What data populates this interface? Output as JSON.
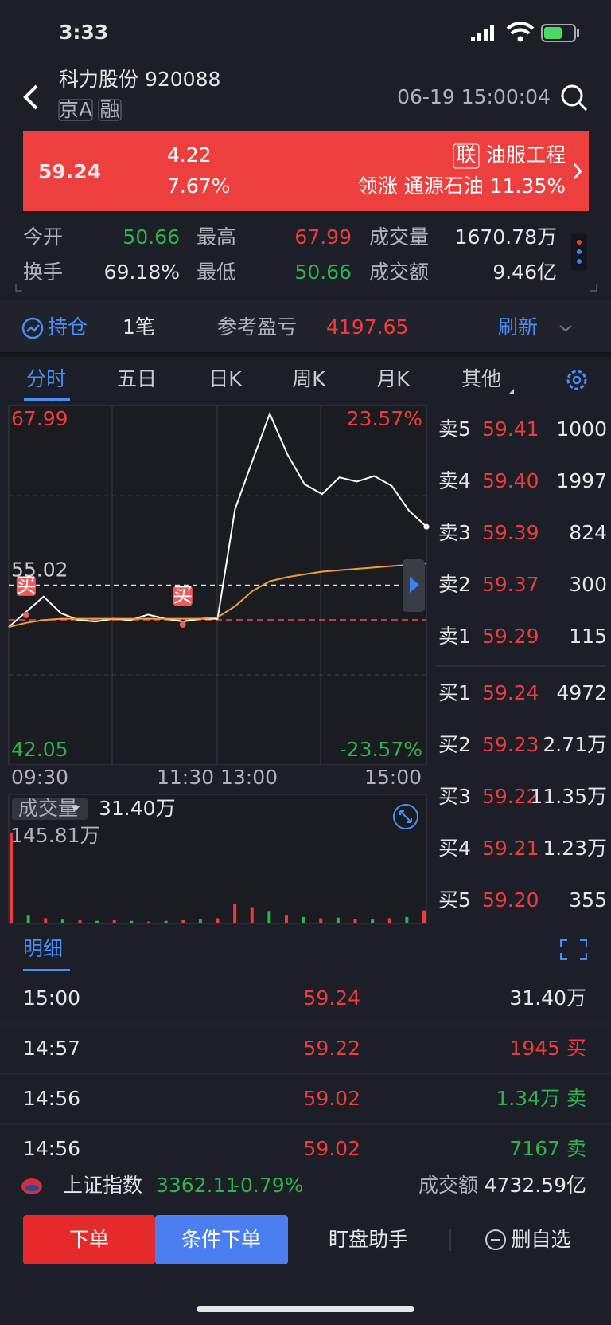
{
  "status_bar": {
    "time": "3:33"
  },
  "header": {
    "title": "科力股份 920088",
    "tags": [
      "京A",
      "融"
    ],
    "datetime": "06-19 15:00:04"
  },
  "quote": {
    "price": "59.24",
    "change": "4.22",
    "change_pct": "7.67%",
    "sector_tag": "联",
    "sector": "油服工程",
    "leader": "领涨 通源石油 11.35%"
  },
  "stats": [
    {
      "label": "今开",
      "value": "50.66",
      "color": "#2fb24a"
    },
    {
      "label": "最高",
      "value": "67.99",
      "color": "#ef3b3b"
    },
    {
      "label": "成交量",
      "value": "1670.78万",
      "color": "#e6e6e6"
    },
    {
      "label": "换手",
      "value": "69.18%",
      "color": "#e6e6e6"
    },
    {
      "label": "最低",
      "value": "50.66",
      "color": "#2fb24a"
    },
    {
      "label": "成交额",
      "value": "9.46亿",
      "color": "#e6e6e6"
    }
  ],
  "position": {
    "label": "持仓",
    "count": "1笔",
    "pnl_label": "参考盈亏",
    "pnl": "4197.65",
    "refresh": "刷新"
  },
  "tabs": [
    "分时",
    "五日",
    "日K",
    "周K",
    "月K",
    "其他"
  ],
  "chart_data": {
    "type": "line",
    "ylim": [
      42.05,
      67.99
    ],
    "yticks": [
      67.99,
      55.02,
      42.05
    ],
    "pct_labels": [
      "23.57%",
      "-23.57%"
    ],
    "x_labels": [
      "09:30",
      "11:30 13:00",
      "15:00"
    ],
    "markers": [
      "买",
      "买"
    ],
    "series": [
      {
        "color": "#ffffff",
        "values": [
          52.0,
          53.1,
          54.2,
          53.0,
          52.5,
          52.4,
          52.6,
          52.5,
          52.9,
          52.6,
          52.4,
          52.6,
          52.6,
          60.5,
          64.0,
          67.4,
          64.5,
          62.3,
          61.6,
          62.8,
          62.5,
          62.9,
          62.2,
          60.4,
          59.24
        ]
      },
      {
        "color": "#f0a030",
        "values": [
          52.0,
          52.3,
          52.5,
          52.6,
          52.6,
          52.6,
          52.6,
          52.6,
          52.6,
          52.6,
          52.6,
          52.6,
          52.7,
          53.5,
          54.6,
          55.3,
          55.6,
          55.8,
          56.0,
          56.1,
          56.2,
          56.3,
          56.4,
          56.5,
          56.6
        ]
      }
    ]
  },
  "volume": {
    "type": "bar",
    "label": "成交量",
    "value": "31.40万",
    "max_label": "145.81万",
    "ylim": [
      0,
      145.81
    ],
    "values": [
      140,
      12,
      8,
      6,
      5,
      4,
      5,
      4,
      3,
      4,
      5,
      6,
      8,
      30,
      25,
      18,
      12,
      10,
      8,
      9,
      7,
      6,
      8,
      10,
      20
    ],
    "colors": [
      "#ef3b3b",
      "#2fb24a",
      "#ef3b3b",
      "#2fb24a",
      "#ef3b3b",
      "#2fb24a",
      "#ef3b3b",
      "#2fb24a",
      "#ef3b3b",
      "#2fb24a",
      "#ef3b3b",
      "#2fb24a",
      "#ef3b3b",
      "#ef3b3b",
      "#ef3b3b",
      "#2fb24a",
      "#ef3b3b",
      "#2fb24a",
      "#ef3b3b",
      "#2fb24a",
      "#ef3b3b",
      "#2fb24a",
      "#ef3b3b",
      "#2fb24a",
      "#ef3b3b"
    ]
  },
  "order_book": {
    "asks": [
      {
        "label": "卖5",
        "price": "59.41",
        "volume": "1000"
      },
      {
        "label": "卖4",
        "price": "59.40",
        "volume": "1997"
      },
      {
        "label": "卖3",
        "price": "59.39",
        "volume": "824"
      },
      {
        "label": "卖2",
        "price": "59.37",
        "volume": "300"
      },
      {
        "label": "卖1",
        "price": "59.29",
        "volume": "115"
      }
    ],
    "bids": [
      {
        "label": "买1",
        "price": "59.24",
        "volume": "4972"
      },
      {
        "label": "买2",
        "price": "59.23",
        "volume": "2.71万"
      },
      {
        "label": "买3",
        "price": "59.22",
        "volume": "11.35万"
      },
      {
        "label": "买4",
        "price": "59.21",
        "volume": "1.23万"
      },
      {
        "label": "买5",
        "price": "59.20",
        "volume": "355"
      }
    ]
  },
  "trades": {
    "title": "明细",
    "rows": [
      {
        "time": "15:00",
        "price": "59.24",
        "volume": "31.40万",
        "color": "#e6e6e6"
      },
      {
        "time": "14:57",
        "price": "59.22",
        "volume": "1945 买",
        "color": "#ef3b3b"
      },
      {
        "time": "14:56",
        "price": "59.02",
        "volume": "1.34万 卖",
        "color": "#2fb24a"
      },
      {
        "time": "14:56",
        "price": "59.02",
        "volume": "7167 卖",
        "color": "#2fb24a"
      }
    ]
  },
  "index_bar": {
    "name": "上证指数",
    "value": "3362.11",
    "change": "-0.79%",
    "turnover_label": "成交额",
    "turnover": "4732.59亿"
  },
  "actions": [
    "下单",
    "条件下单",
    "盯盘助手",
    "删自选"
  ]
}
